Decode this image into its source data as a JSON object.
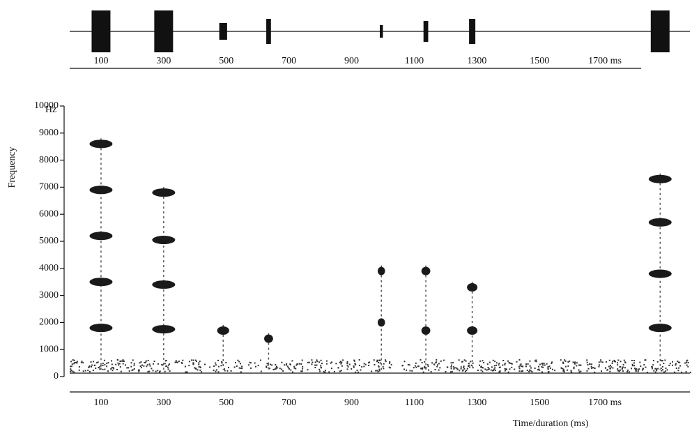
{
  "chart_data": [
    {
      "type": "waveform",
      "xlim": [
        0,
        1980
      ],
      "xticks": [
        100,
        300,
        500,
        700,
        900,
        1100,
        1300,
        1500,
        {
          "value": 1700,
          "label": "1700 ms"
        }
      ]
    },
    {
      "type": "spectrogram",
      "xlabel": "Time/duration (ms)",
      "ylabel": "Frequency",
      "yunit": "Hz",
      "xlim": [
        0,
        1980
      ],
      "ylim": [
        0,
        10000
      ],
      "xticks": [
        100,
        300,
        500,
        700,
        900,
        1100,
        1300,
        1500,
        {
          "value": 1700,
          "label": "1700 ms"
        }
      ],
      "yticks": [
        0,
        1000,
        2000,
        3000,
        4000,
        5000,
        6000,
        7000,
        8000,
        9000,
        10000
      ],
      "calls": [
        {
          "x": 100,
          "duration": 60,
          "amplitude": 1,
          "harmonics": [
            1800,
            3500,
            5200,
            6900,
            8600
          ]
        },
        {
          "x": 300,
          "duration": 60,
          "amplitude": 1,
          "harmonics": [
            1750,
            3400,
            5050,
            6800
          ]
        },
        {
          "x": 490,
          "duration": 25,
          "amplitude": 0.4,
          "harmonics": [
            1700
          ]
        },
        {
          "x": 635,
          "duration": 15,
          "amplitude": 0.6,
          "harmonics": [
            1400
          ]
        },
        {
          "x": 995,
          "duration": 10,
          "amplitude": 0.3,
          "harmonics": [
            2000,
            3900
          ]
        },
        {
          "x": 1137,
          "duration": 15,
          "amplitude": 0.5,
          "harmonics": [
            1700,
            3900
          ]
        },
        {
          "x": 1285,
          "duration": 20,
          "amplitude": 0.6,
          "harmonics": [
            1700,
            3300
          ]
        },
        {
          "x": 1885,
          "duration": 60,
          "amplitude": 1,
          "harmonics": [
            1800,
            3800,
            5700,
            7300
          ]
        }
      ]
    }
  ]
}
